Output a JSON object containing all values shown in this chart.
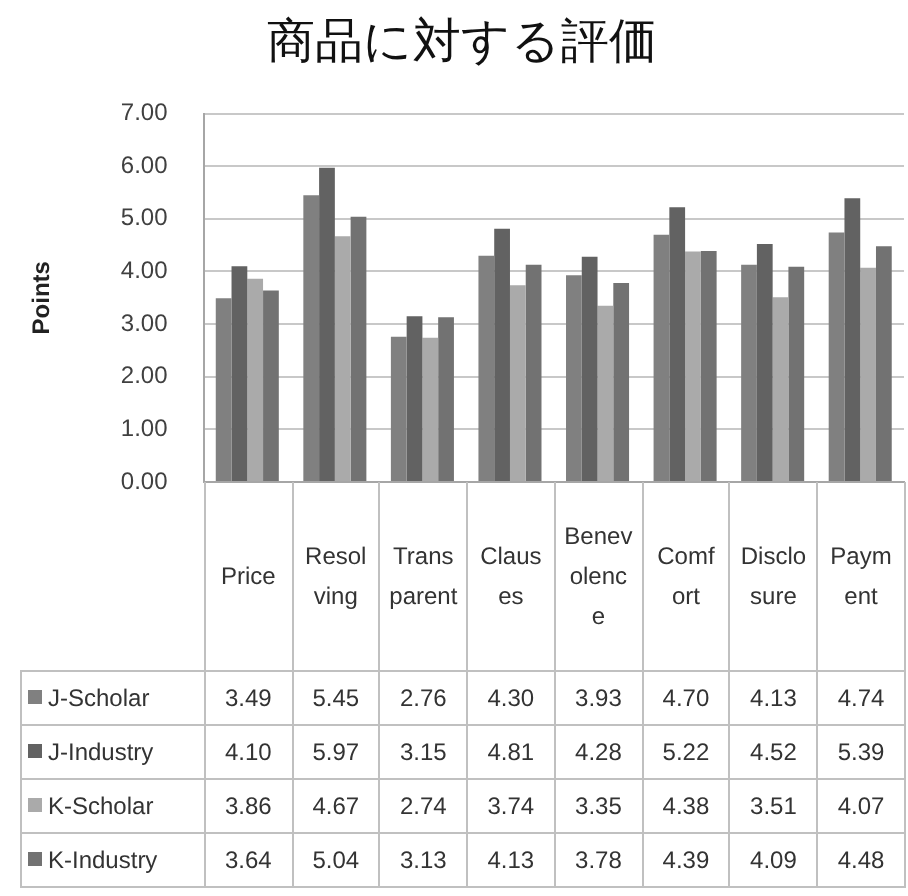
{
  "chart_data": {
    "type": "bar",
    "title": "商品に対する評価",
    "ylabel": "Points",
    "categories": [
      "Price",
      "Resolving",
      "Transparent",
      "Clauses",
      "Benevolence",
      "Comfort",
      "Disclosure",
      "Payment"
    ],
    "series": [
      {
        "name": "J-Scholar",
        "color": "#808080",
        "values": [
          3.49,
          5.45,
          2.76,
          4.3,
          3.93,
          4.7,
          4.13,
          4.74
        ],
        "value_labels": [
          "3.49",
          "5.45",
          "2.76",
          "4.30",
          "3.93",
          "4.70",
          "4.13",
          "4.74"
        ]
      },
      {
        "name": "J-Industry",
        "color": "#626262",
        "values": [
          4.1,
          5.97,
          3.15,
          4.81,
          4.28,
          5.22,
          4.52,
          5.39
        ],
        "value_labels": [
          "4.10",
          "5.97",
          "3.15",
          "4.81",
          "4.28",
          "5.22",
          "4.52",
          "5.39"
        ]
      },
      {
        "name": "K-Scholar",
        "color": "#aaaaaa",
        "values": [
          3.86,
          4.67,
          2.74,
          3.74,
          3.35,
          4.38,
          3.51,
          4.07
        ],
        "value_labels": [
          "3.86",
          "4.67",
          "2.74",
          "3.74",
          "3.35",
          "4.38",
          "3.51",
          "4.07"
        ]
      },
      {
        "name": "K-Industry",
        "color": "#727272",
        "values": [
          3.64,
          5.04,
          3.13,
          4.13,
          3.78,
          4.39,
          4.09,
          4.48
        ],
        "value_labels": [
          "3.64",
          "5.04",
          "3.13",
          "4.13",
          "3.78",
          "4.39",
          "4.09",
          "4.48"
        ]
      }
    ],
    "ylim": [
      0,
      7
    ],
    "yticks": [
      {
        "value": 0,
        "label": "0.00"
      },
      {
        "value": 1,
        "label": "1.00"
      },
      {
        "value": 2,
        "label": "2.00"
      },
      {
        "value": 3,
        "label": "3.00"
      },
      {
        "value": 4,
        "label": "4.00"
      },
      {
        "value": 5,
        "label": "5.00"
      },
      {
        "value": 6,
        "label": "6.00"
      },
      {
        "value": 7,
        "label": "7.00"
      }
    ],
    "grid": "y",
    "legend": "bottom left"
  }
}
